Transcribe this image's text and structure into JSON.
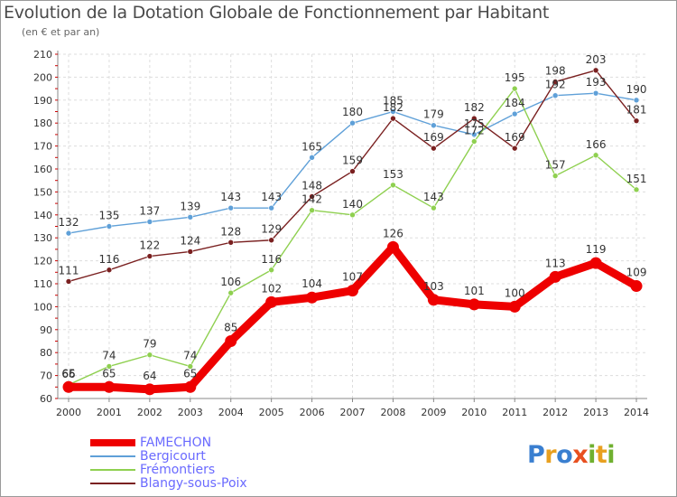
{
  "header": {
    "title": "Evolution de la Dotation Globale de Fonctionnement par Habitant",
    "subtitle": "(en € et par an)"
  },
  "logo": {
    "text": "Proxiti",
    "letters": [
      "P",
      "r",
      "o",
      "x",
      "i",
      "t",
      "i"
    ],
    "colors": [
      "#3a7fd0",
      "#e8a020",
      "#3a7fd0",
      "#e85020",
      "#70b030",
      "#e8a020",
      "#70b030"
    ]
  },
  "chart_data": {
    "type": "line",
    "title": "Evolution de la Dotation Globale de Fonctionnement par Habitant",
    "ylabel": "(en € et par an)",
    "xlabel": "",
    "categories": [
      "2000",
      "2001",
      "2002",
      "2003",
      "2004",
      "2005",
      "2006",
      "2007",
      "2008",
      "2009",
      "2010",
      "2011",
      "2012",
      "2013",
      "2014"
    ],
    "ylim": [
      60,
      210
    ],
    "yticks": [
      "60",
      "70",
      "80",
      "90",
      "100",
      "110",
      "120",
      "130",
      "140",
      "150",
      "160",
      "170",
      "180",
      "190",
      "200",
      "210"
    ],
    "grid": true,
    "legend_position": "bottom-left",
    "series": [
      {
        "name": "FAMECHON",
        "color": "#ee0000",
        "values": [
          65,
          65,
          64,
          65,
          85,
          102,
          104,
          107,
          126,
          103,
          101,
          100,
          113,
          119,
          109
        ]
      },
      {
        "name": "Bergicourt",
        "color": "#5fa0d8",
        "values": [
          132,
          135,
          137,
          139,
          143,
          143,
          165,
          180,
          185,
          179,
          175,
          184,
          192,
          193,
          190
        ]
      },
      {
        "name": "Frémontiers",
        "color": "#8fd050",
        "values": [
          66,
          74,
          79,
          74,
          106,
          116,
          142,
          140,
          153,
          143,
          172,
          195,
          157,
          166,
          151
        ]
      },
      {
        "name": "Blangy-sous-Poix",
        "color": "#7a2020",
        "values": [
          111,
          116,
          122,
          124,
          128,
          129,
          148,
          159,
          182,
          169,
          182,
          169,
          198,
          203,
          181
        ]
      }
    ],
    "data_labels": [
      [
        "65",
        "65",
        "64",
        "65",
        "85",
        "102",
        "104",
        "107",
        "126",
        "103",
        "101",
        "100",
        "113",
        "119",
        "109"
      ],
      [
        "132",
        "135",
        "137",
        "139",
        "143",
        "143",
        "165",
        "180",
        "185",
        "179",
        "175",
        "184",
        "192",
        "193",
        "190"
      ],
      [
        "66",
        "74",
        "79",
        "74",
        "106",
        "116",
        "142",
        "140",
        "153",
        "143",
        "172",
        "195",
        "157",
        "166",
        "151"
      ],
      [
        "111",
        "116",
        "122",
        "124",
        "128",
        "129",
        "148",
        "159",
        "182",
        "169",
        "182",
        "169",
        "198",
        "203",
        "181"
      ]
    ]
  }
}
